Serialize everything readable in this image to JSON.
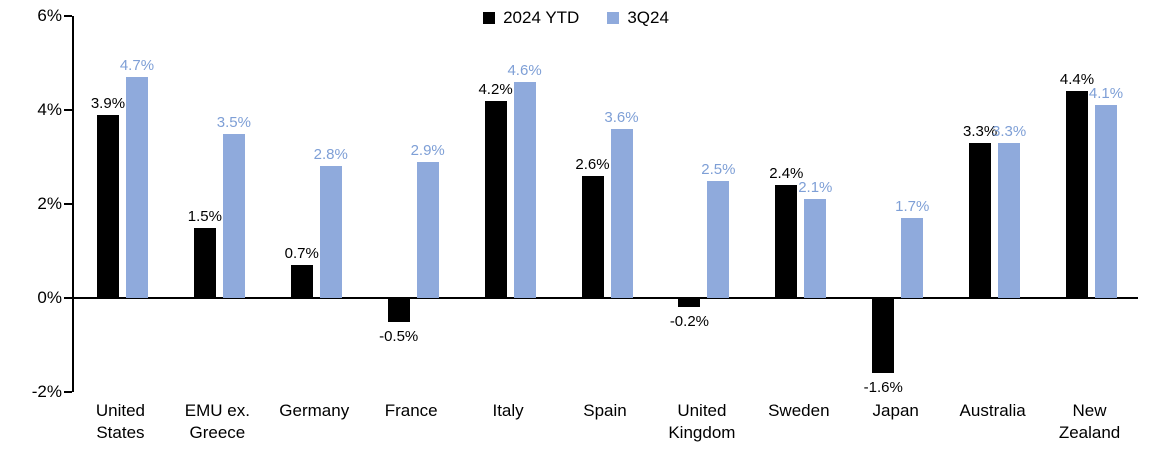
{
  "chart_data": {
    "type": "bar",
    "title": "",
    "categories": [
      "United States",
      "EMU ex. Greece",
      "Germany",
      "France",
      "Italy",
      "Spain",
      "United Kingdom",
      "Sweden",
      "Japan",
      "Australia",
      "New Zealand"
    ],
    "series": [
      {
        "name": "2024 YTD",
        "color": "#000000",
        "label_color": "#000000",
        "values": [
          3.9,
          1.5,
          0.7,
          -0.5,
          4.2,
          2.6,
          -0.2,
          2.4,
          -1.6,
          3.3,
          4.4
        ]
      },
      {
        "name": "3Q24",
        "color": "#8FAADC",
        "label_color": "#7E9FD6",
        "values": [
          4.7,
          3.5,
          2.8,
          2.9,
          4.6,
          3.6,
          2.5,
          2.1,
          1.7,
          3.3,
          4.1
        ]
      }
    ],
    "ylim": [
      -2,
      6
    ],
    "yticks": [
      {
        "value": 6,
        "label": "6%"
      },
      {
        "value": 4,
        "label": "4%"
      },
      {
        "value": 2,
        "label": "2%"
      },
      {
        "value": 0,
        "label": "0%"
      },
      {
        "value": -2,
        "label": "-2%"
      }
    ],
    "grid": false,
    "legend_position": "top-center"
  }
}
